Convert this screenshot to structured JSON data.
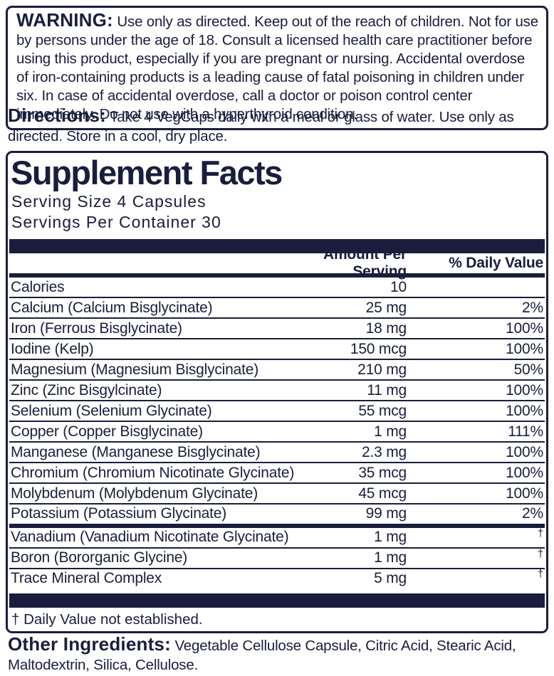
{
  "colors": {
    "navy": "#1a1e3c",
    "background": "#ffffff"
  },
  "warning": {
    "label": "WARNING:",
    "text": "Use only as directed. Keep out of the reach of children. Not for use by persons under the age of 18. Consult a licensed health care practitioner before using this product, especially if you are pregnant or nursing. Accidental overdose of iron-containing products is a leading cause of fatal poisoning in children under six. In case of accidental overdose, call a doctor or poison control center immediately. Do not use with a hyperthyroid condition."
  },
  "directions": {
    "label": "Directions:",
    "text": "Take 4 VegCaps daily with a meal or glass of water. Use only as directed. Store in a cool, dry place."
  },
  "supplement_facts": {
    "title": "Supplement Facts",
    "serving_size": "Serving Size 4 Capsules",
    "servings_per_container": "Servings Per Container 30",
    "columns": {
      "amount": "Amount Per Serving",
      "daily_value": "% Daily Value"
    },
    "rows": [
      {
        "name": "Calories",
        "amount": "10",
        "dv": ""
      },
      {
        "name": "Calcium (Calcium Bisglycinate)",
        "amount": "25 mg",
        "dv": "2%"
      },
      {
        "name": "Iron (Ferrous Bisglycinate)",
        "amount": "18 mg",
        "dv": "100%"
      },
      {
        "name": "Iodine (Kelp)",
        "amount": "150 mcg",
        "dv": "100%"
      },
      {
        "name": "Magnesium (Magnesium Bisglycinate)",
        "amount": "210 mg",
        "dv": "50%"
      },
      {
        "name": "Zinc (Zinc Bisgylcinate)",
        "amount": "11 mg",
        "dv": "100%"
      },
      {
        "name": "Selenium (Selenium Glycinate)",
        "amount": "55 mcg",
        "dv": "100%"
      },
      {
        "name": "Copper (Copper Bisglycinate)",
        "amount": "1 mg",
        "dv": "111%"
      },
      {
        "name": "Manganese (Manganese Bisglycinate)",
        "amount": "2.3 mg",
        "dv": "100%"
      },
      {
        "name": "Chromium (Chromium Nicotinate Glycinate)",
        "amount": "35 mcg",
        "dv": "100%"
      },
      {
        "name": "Molybdenum (Molybdenum Glycinate)",
        "amount": "45 mcg",
        "dv": "100%"
      },
      {
        "name": "Potassium (Potassium Glycinate)",
        "amount": "99 mg",
        "dv": "2%"
      }
    ],
    "trace_rows": [
      {
        "name": "Vanadium (Vanadium Nicotinate Glycinate)",
        "amount": "1 mg",
        "dv": "†"
      },
      {
        "name": "Boron (Bororganic Glycine)",
        "amount": "1 mg",
        "dv": "†"
      },
      {
        "name": "Trace Mineral Complex",
        "amount": "5 mg",
        "dv": "†"
      }
    ],
    "footnote": "† Daily Value not established."
  },
  "other_ingredients": {
    "label": "Other Ingredients:",
    "text": "Vegetable Cellulose Capsule, Citric Acid, Stearic Acid, Maltodextrin, Silica, Cellulose."
  }
}
